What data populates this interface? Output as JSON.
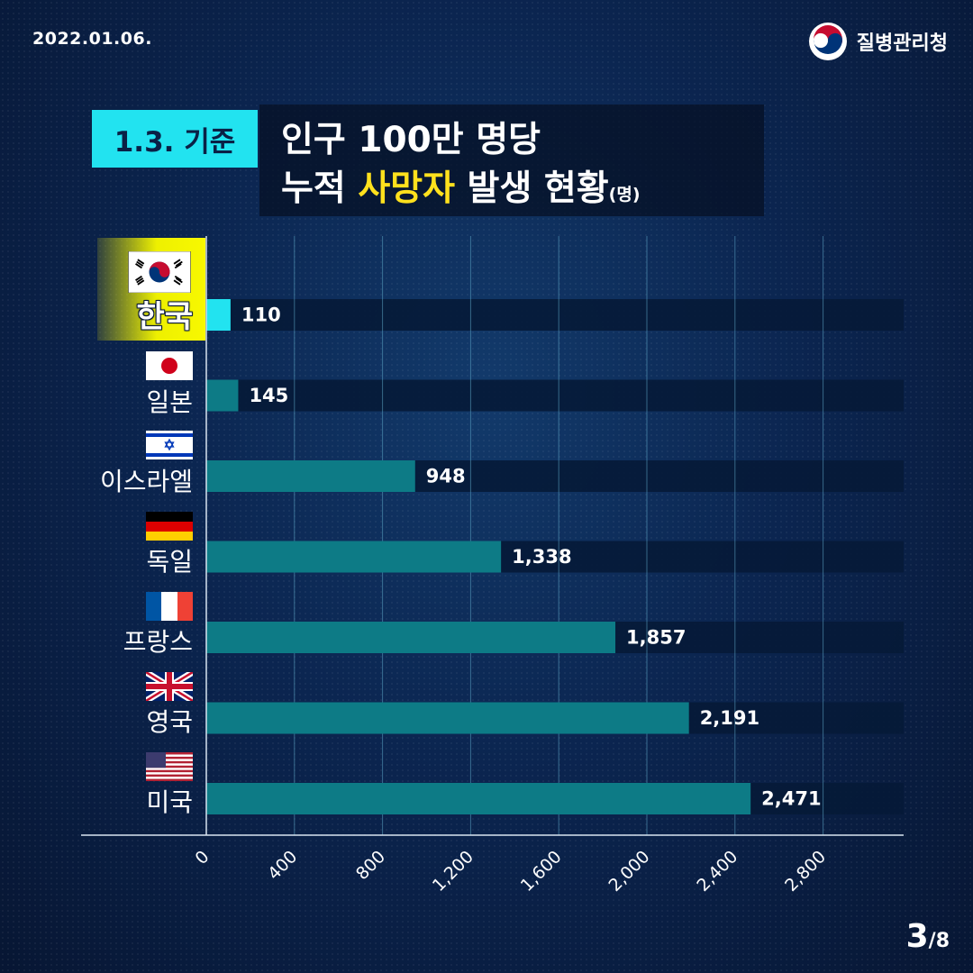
{
  "date": "2022.01.06.",
  "agency": "질병관리청",
  "badge": "1.3. 기준",
  "title": {
    "line1": "인구 100만 명당",
    "line2_prefix": "누적 ",
    "line2_highlight": "사망자",
    "line2_suffix": " 발생 현황",
    "unit": "(명)"
  },
  "page": {
    "current": "3",
    "total": "/8"
  },
  "colors": {
    "bar": "#0d7b86",
    "bar_highlight": "#22e3f0",
    "track": "#061a37",
    "highlight_label": "#f5f500",
    "accent": "#ffe11d"
  },
  "countries": [
    {
      "name": "한국",
      "flag": "korea-flag-icon",
      "highlight": true
    },
    {
      "name": "일본",
      "flag": "japan-flag-icon"
    },
    {
      "name": "이스라엘",
      "flag": "israel-flag-icon"
    },
    {
      "name": "독일",
      "flag": "germany-flag-icon"
    },
    {
      "name": "프랑스",
      "flag": "france-flag-icon"
    },
    {
      "name": "영국",
      "flag": "uk-flag-icon"
    },
    {
      "name": "미국",
      "flag": "usa-flag-icon"
    }
  ],
  "chart_data": {
    "type": "bar",
    "orientation": "horizontal",
    "title": "인구 100만 명당 누적 사망자 발생 현황(명)",
    "categories": [
      "한국",
      "일본",
      "이스라엘",
      "독일",
      "프랑스",
      "영국",
      "미국"
    ],
    "values": [
      110,
      145,
      948,
      1338,
      1857,
      2191,
      2471
    ],
    "value_labels": [
      "110",
      "145",
      "948",
      "1,338",
      "1,857",
      "2,191",
      "2,471"
    ],
    "xlim": [
      0,
      3200
    ],
    "xticks": [
      0,
      400,
      800,
      1200,
      1600,
      2000,
      2400,
      2800
    ],
    "xtick_labels": [
      "0",
      "400",
      "800",
      "1,200",
      "1,600",
      "2,000",
      "2,400",
      "2,800"
    ],
    "grid": true
  }
}
